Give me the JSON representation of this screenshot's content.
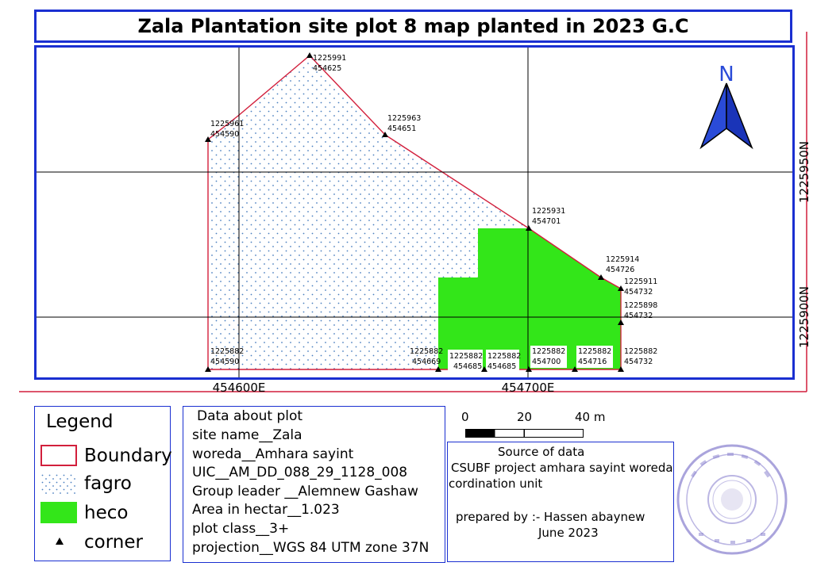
{
  "title": "Zala Plantation site plot 8 map planted in 2023 G.C",
  "map": {
    "north_label": "N",
    "grid_labels": {
      "x1": "454600E",
      "x2": "454700E",
      "y1": "1225950N",
      "y2": "1225900N"
    },
    "colors": {
      "boundary": "#d21f3c",
      "fagro_dots": "#4a7fc0",
      "heco_fill": "#33e619",
      "frame": "#1a2fd1",
      "north_arrow": "#2a4bd8"
    },
    "corners": [
      {
        "n": "1225991",
        "e": "454625"
      },
      {
        "n": "1225963",
        "e": "454651"
      },
      {
        "n": "1225961",
        "e": "454590"
      },
      {
        "n": "1225931",
        "e": "454701"
      },
      {
        "n": "1225914",
        "e": "454726"
      },
      {
        "n": "1225911",
        "e": "454732"
      },
      {
        "n": "1225898",
        "e": "454732"
      },
      {
        "n": "1225882",
        "e": "454590"
      },
      {
        "n": "1225882",
        "e": "454669"
      },
      {
        "n": "1225882",
        "e": "454685"
      },
      {
        "n": "1225882",
        "e": "454685"
      },
      {
        "n": "1225882",
        "e": "454700"
      },
      {
        "n": "1225882",
        "e": "454716"
      },
      {
        "n": "1225882",
        "e": "454732"
      }
    ]
  },
  "legend": {
    "title": "Legend",
    "items": [
      {
        "label": "Boundary",
        "icon": "boundary-swatch"
      },
      {
        "label": "fagro",
        "icon": "dotted-swatch"
      },
      {
        "label": "heco",
        "icon": "green-swatch"
      },
      {
        "label": "corner",
        "icon": "triangle-icon"
      }
    ]
  },
  "plot_info": {
    "heading": "Data about plot",
    "site_name": "site name__Zala",
    "woreda": "woreda__Amhara sayint",
    "uic": "UIC__AM_DD_088_29_1128_008",
    "group_leader": "Group leader __Alemnew Gashaw",
    "area": "Area in hectar__1.023",
    "plot_class": "plot class__3+",
    "projection": "projection__WGS 84 UTM zone 37N"
  },
  "scale_bar": {
    "labels": [
      "0",
      "20",
      "40 m"
    ]
  },
  "source": {
    "heading": "Source of data",
    "line1": "CSUBF project amhara sayint woreda",
    "line2": "cordination unit",
    "prepared_by": "prepared by :- Hassen abaynew",
    "date": "June 2023"
  }
}
